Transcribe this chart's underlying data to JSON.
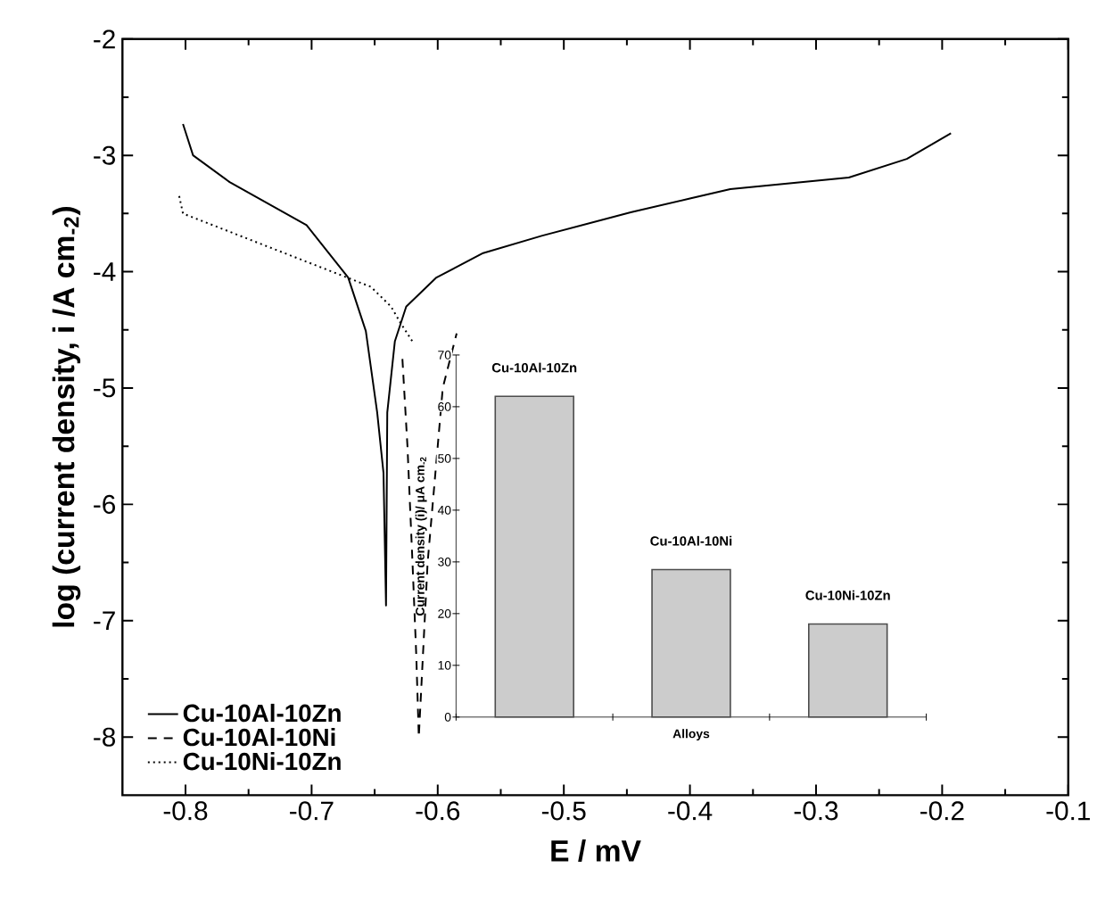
{
  "chart_data": [
    {
      "type": "line",
      "xlabel": "E / mV",
      "ylabel": "log (current density, i /A cm$_{-2}$)",
      "xlim": [
        -0.85,
        -0.1
      ],
      "ylim": [
        -8.5,
        -2
      ],
      "xticks": [
        -0.8,
        -0.7,
        -0.6,
        -0.5,
        -0.4,
        -0.3,
        -0.2,
        -0.1
      ],
      "yticks": [
        -8,
        -7,
        -6,
        -5,
        -4,
        -3,
        -2
      ],
      "legend": "bottom left",
      "series": [
        {
          "name": "Cu-10Al-10Zn",
          "color": "#000000",
          "line_style": "solid",
          "x": [
            -0.802,
            -0.794,
            -0.765,
            -0.704,
            -0.671,
            -0.657,
            -0.648,
            -0.643,
            -0.641,
            -0.64,
            -0.634,
            -0.625,
            -0.601,
            -0.564,
            -0.517,
            -0.447,
            -0.4,
            -0.368,
            -0.274,
            -0.228,
            -0.193
          ],
          "values": [
            -2.73,
            -3.0,
            -3.23,
            -3.6,
            -4.05,
            -4.51,
            -5.21,
            -5.73,
            -6.87,
            -5.21,
            -4.6,
            -4.3,
            -4.05,
            -3.84,
            -3.69,
            -3.49,
            -3.37,
            -3.29,
            -3.19,
            -3.03,
            -2.81
          ]
        },
        {
          "name": "Cu-10Al-10Ni",
          "color": "#000000",
          "line_style": "dashed",
          "x": [
            -0.628,
            -0.624,
            -0.62,
            -0.617,
            -0.615,
            -0.608,
            -0.604,
            -0.6,
            -0.596,
            -0.585
          ],
          "values": [
            -4.75,
            -5.5,
            -6.5,
            -7.3,
            -8.0,
            -6.5,
            -6.0,
            -5.5,
            -5.0,
            -4.53
          ]
        },
        {
          "name": "Cu-10Ni-10Zn",
          "color": "#000000",
          "line_style": "dotted",
          "x": [
            -0.805,
            -0.802,
            -0.653,
            -0.637,
            -0.629,
            -0.62
          ],
          "values": [
            -3.35,
            -3.5,
            -4.13,
            -4.3,
            -4.45,
            -4.6
          ]
        }
      ]
    },
    {
      "type": "bar",
      "xlabel": "Alloys",
      "ylabel": "Current density (i)/ μA cm$_{-2}$",
      "categories": [
        "Cu-10Al-10Zn",
        "Cu-10Al-10Ni",
        "Cu-10Ni-10Zn"
      ],
      "values": [
        62,
        28.5,
        18
      ],
      "color": "#cccccc",
      "ylim": [
        0,
        70
      ],
      "yticks": [
        0,
        10,
        20,
        30,
        40,
        50,
        60,
        70
      ]
    }
  ]
}
